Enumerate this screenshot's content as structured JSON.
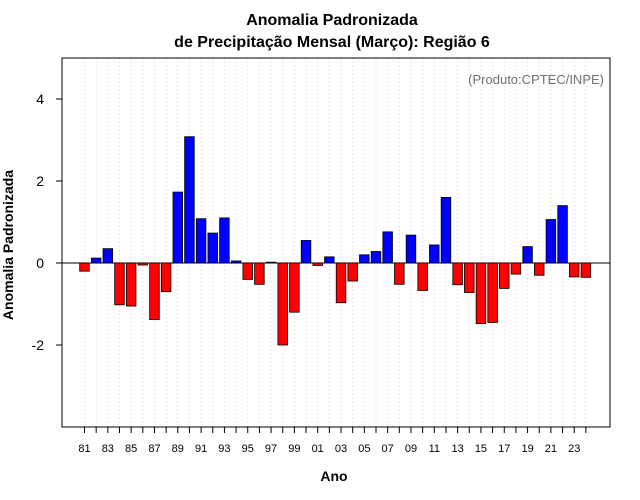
{
  "chart_data": {
    "type": "bar",
    "title": [
      "Anomalia Padronizada",
      "de Precipitação Mensal (Março): Região 6"
    ],
    "xlabel": "Ano",
    "ylabel": "Anomalia Padronizada",
    "annotation": "(Produto:CPTEC/INPE)",
    "ylim": [
      -4,
      5
    ],
    "yticks": [
      -2,
      0,
      2,
      4
    ],
    "grid": "vertical-dotted",
    "colors": {
      "positive": "#0000ff",
      "negative": "#ff0000",
      "border": "#000000"
    },
    "xtick_labels": [
      "81",
      "83",
      "85",
      "87",
      "89",
      "91",
      "93",
      "95",
      "97",
      "99",
      "01",
      "03",
      "05",
      "07",
      "09",
      "11",
      "13",
      "15",
      "17",
      "19",
      "21",
      "23"
    ],
    "categories": [
      "1981",
      "1982",
      "1983",
      "1984",
      "1985",
      "1986",
      "1987",
      "1988",
      "1989",
      "1990",
      "1991",
      "1992",
      "1993",
      "1994",
      "1995",
      "1996",
      "1997",
      "1998",
      "1999",
      "2000",
      "2001",
      "2002",
      "2003",
      "2004",
      "2005",
      "2006",
      "2007",
      "2008",
      "2009",
      "2010",
      "2011",
      "2012",
      "2013",
      "2014",
      "2015",
      "2016",
      "2017",
      "2018",
      "2019",
      "2020",
      "2021",
      "2022",
      "2023",
      "2024"
    ],
    "values": [
      -0.2,
      0.12,
      0.35,
      -1.02,
      -1.05,
      -0.05,
      -1.38,
      -0.7,
      1.73,
      3.08,
      1.08,
      0.73,
      1.1,
      0.05,
      -0.4,
      -0.52,
      0.02,
      -2.0,
      -1.2,
      0.55,
      -0.06,
      0.15,
      -0.97,
      -0.44,
      0.2,
      0.28,
      0.76,
      -0.52,
      0.68,
      -0.67,
      0.44,
      1.6,
      -0.53,
      -0.72,
      -1.48,
      -1.45,
      -0.62,
      -0.27,
      0.4,
      -0.3,
      1.06,
      1.4,
      -0.34,
      -0.35
    ]
  }
}
